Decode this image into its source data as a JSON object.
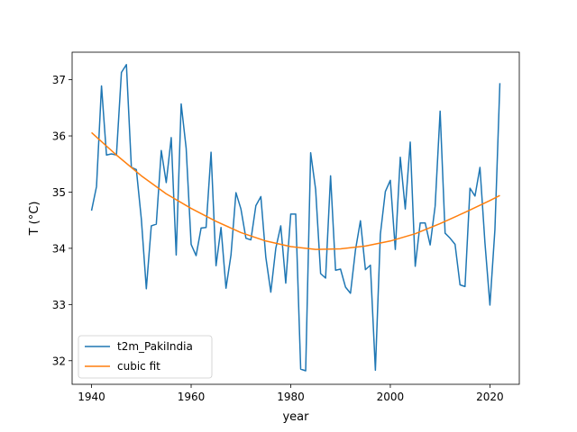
{
  "chart_data": {
    "type": "line",
    "title": "",
    "xlabel": "year",
    "ylabel": "T (°C)",
    "xlim": [
      1936.1,
      2025.9
    ],
    "ylim": [
      31.58,
      37.49
    ],
    "xticks": [
      1940,
      1960,
      1980,
      2000,
      2020
    ],
    "yticks": [
      32,
      33,
      34,
      35,
      36,
      37
    ],
    "legend_position": "lower-left",
    "series": [
      {
        "name": "t2m_PakiIndia",
        "color": "#1f77b4",
        "x": [
          1940,
          1941,
          1942,
          1943,
          1944,
          1945,
          1946,
          1947,
          1948,
          1949,
          1950,
          1951,
          1952,
          1953,
          1954,
          1955,
          1956,
          1957,
          1958,
          1959,
          1960,
          1961,
          1962,
          1963,
          1964,
          1965,
          1966,
          1967,
          1968,
          1969,
          1970,
          1971,
          1972,
          1973,
          1974,
          1975,
          1976,
          1977,
          1978,
          1979,
          1980,
          1981,
          1982,
          1983,
          1984,
          1985,
          1986,
          1987,
          1988,
          1989,
          1990,
          1991,
          1992,
          1993,
          1994,
          1995,
          1996,
          1997,
          1998,
          1999,
          2000,
          2001,
          2002,
          2003,
          2004,
          2005,
          2006,
          2007,
          2008,
          2009,
          2010,
          2011,
          2012,
          2013,
          2014,
          2015,
          2016,
          2017,
          2018,
          2019,
          2020,
          2021,
          2022
        ],
        "values": [
          34.67,
          35.1,
          36.89,
          35.66,
          35.68,
          35.66,
          37.13,
          37.27,
          35.44,
          35.4,
          34.52,
          33.28,
          34.4,
          34.43,
          35.74,
          35.17,
          35.97,
          33.88,
          36.57,
          35.78,
          34.07,
          33.87,
          34.36,
          34.37,
          35.71,
          33.69,
          34.37,
          33.29,
          33.88,
          34.99,
          34.7,
          34.18,
          34.15,
          34.76,
          34.92,
          33.84,
          33.22,
          34.0,
          34.4,
          33.38,
          34.61,
          34.61,
          31.85,
          31.82,
          35.7,
          35.05,
          33.55,
          33.47,
          35.29,
          33.61,
          33.63,
          33.31,
          33.2,
          33.97,
          34.49,
          33.62,
          33.7,
          31.83,
          34.25,
          35.01,
          35.21,
          33.98,
          35.62,
          34.7,
          35.89,
          33.68,
          34.45,
          34.45,
          34.06,
          34.75,
          36.44,
          34.27,
          34.18,
          34.07,
          33.35,
          33.32,
          35.07,
          34.93,
          35.44,
          34.1,
          32.99,
          34.33,
          36.94
        ]
      },
      {
        "name": "cubic fit",
        "color": "#ff7f0e",
        "x": [
          1940,
          1945,
          1950,
          1955,
          1960,
          1965,
          1970,
          1975,
          1980,
          1985,
          1990,
          1995,
          2000,
          2005,
          2010,
          2015,
          2020,
          2022
        ],
        "values": [
          36.06,
          35.66,
          35.29,
          34.97,
          34.71,
          34.48,
          34.28,
          34.13,
          34.03,
          33.98,
          33.99,
          34.04,
          34.13,
          34.26,
          34.44,
          34.64,
          34.85,
          34.94
        ]
      }
    ]
  }
}
